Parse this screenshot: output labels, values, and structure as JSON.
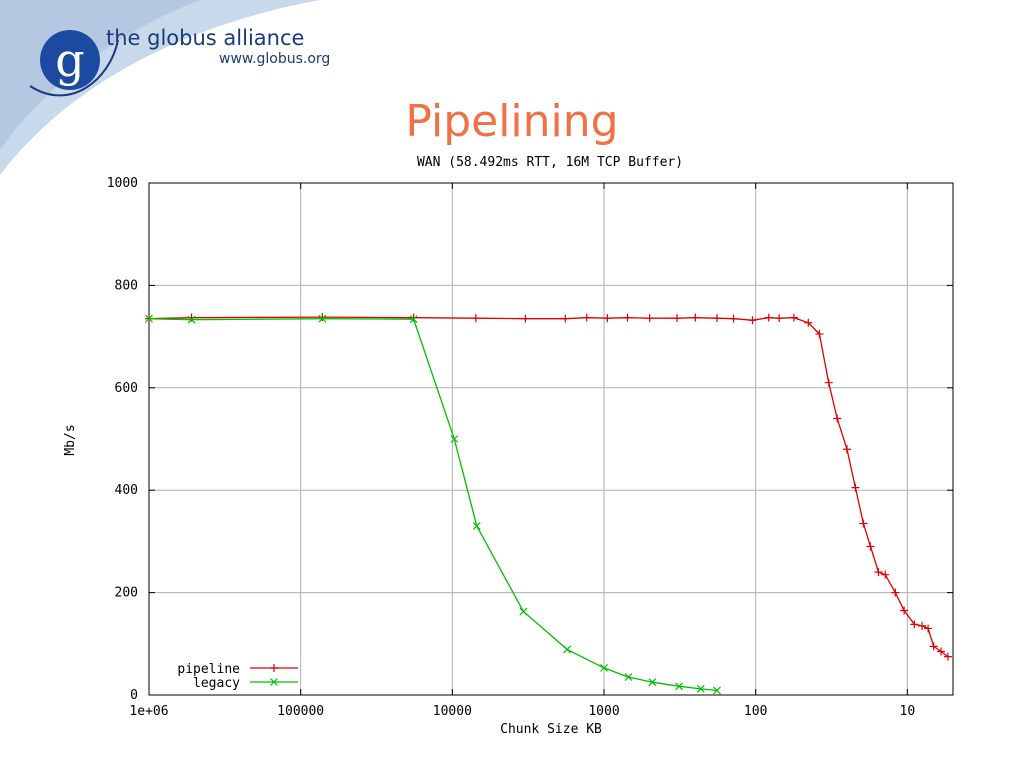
{
  "brand": {
    "name": "the globus alliance",
    "url": "www.globus.org",
    "logo_letter": "g"
  },
  "slide": {
    "title": "Pipelining"
  },
  "colors": {
    "pipeline": "#e00000",
    "legacy": "#00c000",
    "title": "#ef7145",
    "banner": "#c9d9ec"
  },
  "chart_data": {
    "type": "line",
    "title": "WAN (58.492ms RTT, 16M TCP Buffer)",
    "xlabel": "Chunk Size KB",
    "ylabel": "Mb/s",
    "xscale": "log",
    "xreversed": true,
    "xlim": [
      1000000,
      5
    ],
    "ylim": [
      0,
      1000
    ],
    "xticks": [
      {
        "value": 1000000,
        "label": "1e+06"
      },
      {
        "value": 100000,
        "label": "100000"
      },
      {
        "value": 10000,
        "label": "10000"
      },
      {
        "value": 1000,
        "label": "1000"
      },
      {
        "value": 100,
        "label": "100"
      },
      {
        "value": 10,
        "label": "10"
      }
    ],
    "yticks": [
      {
        "value": 0,
        "label": "0"
      },
      {
        "value": 200,
        "label": "200"
      },
      {
        "value": 400,
        "label": "400"
      },
      {
        "value": 600,
        "label": "600"
      },
      {
        "value": 800,
        "label": "800"
      },
      {
        "value": 1000,
        "label": "1000"
      }
    ],
    "grid": true,
    "legend": "bottom-left",
    "series": [
      {
        "name": "pipeline",
        "marker": "+",
        "points": [
          [
            1000000,
            735
          ],
          [
            524000,
            737
          ],
          [
            72000,
            738
          ],
          [
            18000,
            737
          ],
          [
            7000,
            736
          ],
          [
            3300,
            735
          ],
          [
            1800,
            735
          ],
          [
            1300,
            737
          ],
          [
            950,
            736
          ],
          [
            700,
            737
          ],
          [
            500,
            736
          ],
          [
            330,
            736
          ],
          [
            250,
            737
          ],
          [
            180,
            736
          ],
          [
            140,
            735
          ],
          [
            105,
            732
          ],
          [
            82,
            737
          ],
          [
            70,
            736
          ],
          [
            56,
            737
          ],
          [
            45,
            727
          ],
          [
            38,
            705
          ],
          [
            33,
            610
          ],
          [
            29,
            540
          ],
          [
            25,
            480
          ],
          [
            22,
            405
          ],
          [
            19.5,
            335
          ],
          [
            17.5,
            290
          ],
          [
            15.5,
            240
          ],
          [
            14,
            235
          ],
          [
            12,
            200
          ],
          [
            10.5,
            165
          ],
          [
            9,
            138
          ],
          [
            8,
            135
          ],
          [
            7.3,
            130
          ],
          [
            6.7,
            95
          ],
          [
            6,
            85
          ],
          [
            5.4,
            75
          ]
        ]
      },
      {
        "name": "legacy",
        "marker": "x",
        "points": [
          [
            1000000,
            735
          ],
          [
            524000,
            733
          ],
          [
            72000,
            735
          ],
          [
            18000,
            734
          ],
          [
            9700,
            500
          ],
          [
            6900,
            330
          ],
          [
            3400,
            163
          ],
          [
            1750,
            89
          ],
          [
            1000,
            53
          ],
          [
            690,
            35
          ],
          [
            480,
            25
          ],
          [
            320,
            17
          ],
          [
            230,
            12
          ],
          [
            180,
            9
          ]
        ]
      }
    ]
  }
}
